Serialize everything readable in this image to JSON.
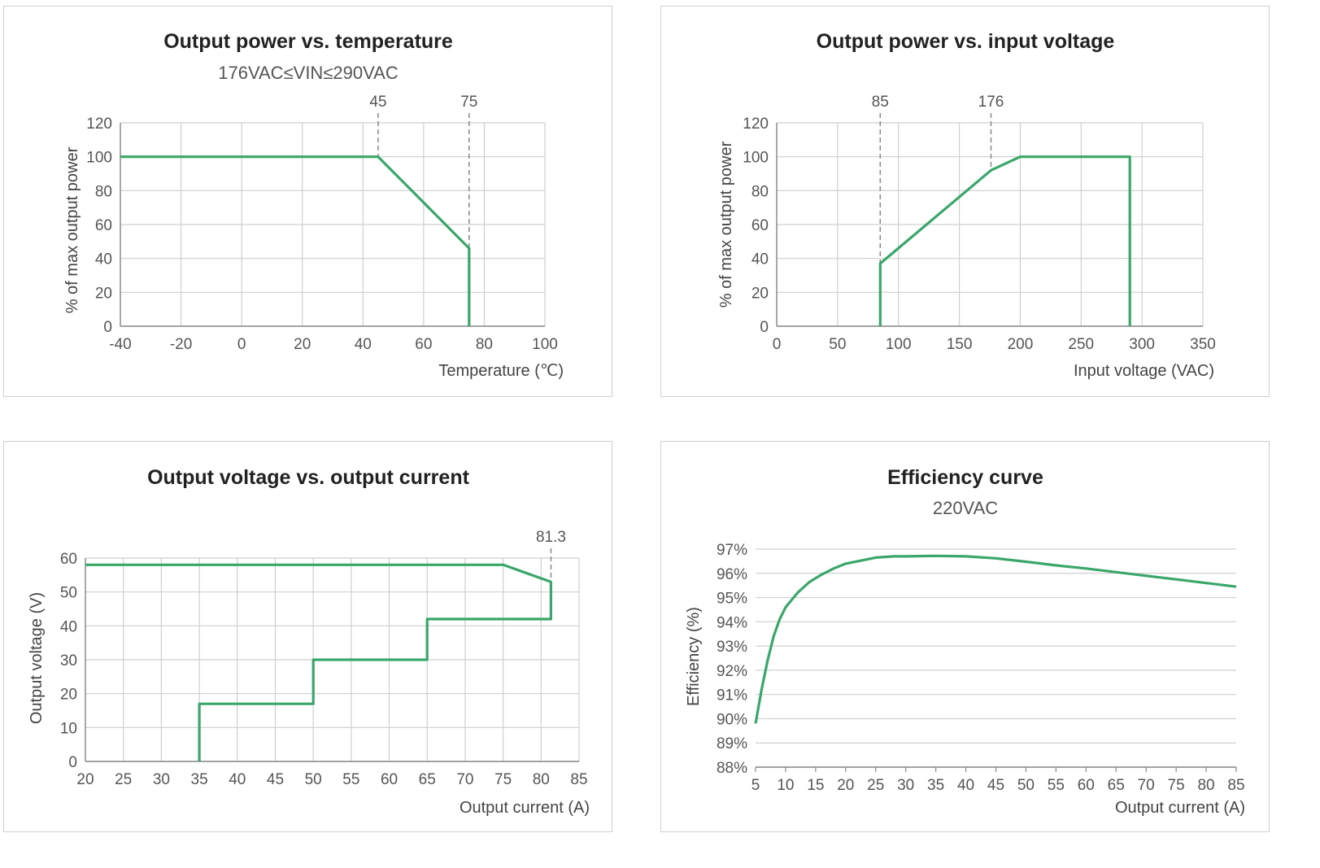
{
  "colors": {
    "line": "#3aa66a",
    "grid": "#cfcfcf",
    "axis": "#888888",
    "refline": "#888888"
  },
  "chart_data": [
    {
      "type": "line",
      "title": "Output power vs. temperature",
      "subtitle": "176VAC≤VIN≤290VAC",
      "xlabel": "Temperature (℃)",
      "ylabel": "% of max output power",
      "xlim": [
        -40,
        100
      ],
      "ylim": [
        0,
        120
      ],
      "xticks": [
        -40,
        -20,
        0,
        20,
        40,
        60,
        80,
        100
      ],
      "yticks": [
        0,
        20,
        40,
        60,
        80,
        100,
        120
      ],
      "x_tick_labels": [
        "-40",
        "-20",
        "0",
        "20",
        "40",
        "60",
        "80",
        "100"
      ],
      "y_tick_labels": [
        "0",
        "20",
        "40",
        "60",
        "80",
        "100",
        "120"
      ],
      "grid": true,
      "reference_lines": [
        {
          "x": 45,
          "label": "45"
        },
        {
          "x": 75,
          "label": "75"
        }
      ],
      "series": [
        {
          "x": [
            -40,
            45,
            75,
            75
          ],
          "y": [
            100,
            100,
            46,
            0
          ]
        }
      ]
    },
    {
      "type": "line",
      "title": "Output power vs. input voltage",
      "subtitle": "",
      "xlabel": "Input voltage (VAC)",
      "ylabel": "% of max output power",
      "xlim": [
        0,
        350
      ],
      "ylim": [
        0,
        120
      ],
      "xticks": [
        0,
        50,
        100,
        150,
        200,
        250,
        300,
        350
      ],
      "yticks": [
        0,
        20,
        40,
        60,
        80,
        100,
        120
      ],
      "x_tick_labels": [
        "0",
        "50",
        "100",
        "150",
        "200",
        "250",
        "300",
        "350"
      ],
      "y_tick_labels": [
        "0",
        "20",
        "40",
        "60",
        "80",
        "100",
        "120"
      ],
      "grid": true,
      "reference_lines": [
        {
          "x": 85,
          "label": "85"
        },
        {
          "x": 176,
          "label": "176"
        }
      ],
      "series": [
        {
          "x": [
            85,
            85,
            176,
            200,
            290,
            290
          ],
          "y": [
            0,
            37,
            92,
            100,
            100,
            0
          ]
        }
      ]
    },
    {
      "type": "line",
      "title": "Output voltage vs. output current",
      "subtitle": "",
      "xlabel": "Output current (A)",
      "ylabel": "Output voltage (V)",
      "xlim": [
        20,
        85
      ],
      "ylim": [
        0,
        60
      ],
      "xticks": [
        20,
        25,
        30,
        35,
        40,
        45,
        50,
        55,
        60,
        65,
        70,
        75,
        80,
        85
      ],
      "yticks": [
        0,
        10,
        20,
        30,
        40,
        50,
        60
      ],
      "x_tick_labels": [
        "20",
        "25",
        "30",
        "35",
        "40",
        "45",
        "50",
        "55",
        "60",
        "65",
        "70",
        "75",
        "80",
        "85"
      ],
      "y_tick_labels": [
        "0",
        "10",
        "20",
        "30",
        "40",
        "50",
        "60"
      ],
      "grid": true,
      "reference_lines": [
        {
          "x": 81.3,
          "label": "81.3"
        }
      ],
      "series": [
        {
          "x": [
            20,
            75,
            81.3,
            81.3,
            65,
            65,
            50,
            50,
            35,
            35
          ],
          "y": [
            58,
            58,
            53,
            42,
            42,
            30,
            30,
            17,
            17,
            0
          ]
        }
      ]
    },
    {
      "type": "line",
      "title": "Efficiency curve",
      "subtitle": "220VAC",
      "xlabel": "Output current (A)",
      "ylabel": "Efficiency (%)",
      "xlim": [
        5,
        85
      ],
      "ylim": [
        88,
        97
      ],
      "xticks": [
        5,
        10,
        15,
        20,
        25,
        30,
        35,
        40,
        45,
        50,
        55,
        60,
        65,
        70,
        75,
        80,
        85
      ],
      "yticks": [
        88,
        89,
        90,
        91,
        92,
        93,
        94,
        95,
        96,
        97
      ],
      "x_tick_labels": [
        "5",
        "10",
        "15",
        "20",
        "25",
        "30",
        "35",
        "40",
        "45",
        "50",
        "55",
        "60",
        "65",
        "70",
        "75",
        "80",
        "85"
      ],
      "y_tick_labels": [
        "88%",
        "89%",
        "90%",
        "91%",
        "92%",
        "93%",
        "94%",
        "95%",
        "96%",
        "97%"
      ],
      "grid": true,
      "horizontal_grid_only": true,
      "reference_lines": [],
      "series": [
        {
          "x": [
            5,
            6,
            7,
            8,
            9,
            10,
            12,
            14,
            16,
            18,
            20,
            22,
            25,
            28,
            30,
            35,
            40,
            45,
            50,
            55,
            60,
            65,
            70,
            75,
            80,
            85
          ],
          "y": [
            89.8,
            91.2,
            92.4,
            93.4,
            94.1,
            94.6,
            95.2,
            95.65,
            95.95,
            96.2,
            96.4,
            96.5,
            96.65,
            96.7,
            96.7,
            96.72,
            96.7,
            96.62,
            96.48,
            96.33,
            96.2,
            96.05,
            95.9,
            95.75,
            95.6,
            95.45
          ]
        }
      ]
    }
  ]
}
